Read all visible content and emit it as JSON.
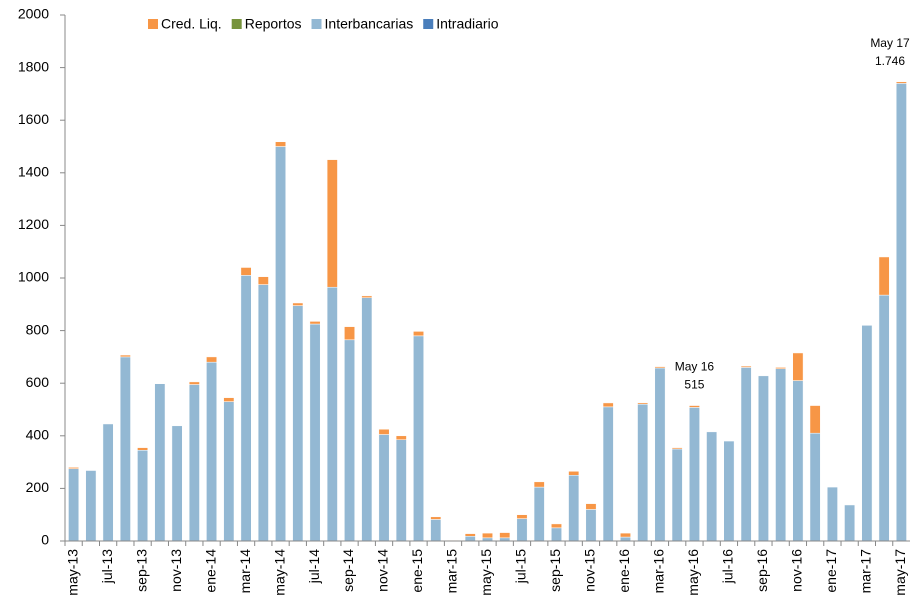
{
  "chart_data": {
    "type": "stacked_bar",
    "categories": [
      "may-13",
      null,
      "jul-13",
      null,
      "sep-13",
      null,
      "nov-13",
      null,
      "ene-14",
      null,
      "mar-14",
      null,
      "may-14",
      null,
      "jul-14",
      null,
      "sep-14",
      null,
      "nov-14",
      null,
      "ene-15",
      null,
      "mar-15",
      null,
      "may-15",
      null,
      "jul-15",
      null,
      "sep-15",
      null,
      "nov-15",
      null,
      "ene-16",
      null,
      "mar-16",
      null,
      "may-16",
      null,
      "jul-16",
      null,
      "sep-16",
      null,
      "nov-16",
      null,
      "ene-17",
      null,
      "mar-17",
      null,
      "may-17"
    ],
    "series": [
      {
        "name": "Intradiario",
        "color": "#4a7ebb",
        "values": [
          0,
          0,
          0,
          0,
          0,
          0,
          0,
          0,
          0,
          0,
          0,
          0,
          0,
          0,
          0,
          0,
          0,
          0,
          0,
          0,
          0,
          0,
          0,
          0,
          0,
          0,
          0,
          0,
          0,
          0,
          0,
          0,
          0,
          0,
          0,
          0,
          0,
          0,
          0,
          0,
          0,
          0,
          0,
          0,
          0,
          0,
          0,
          0,
          0
        ]
      },
      {
        "name": "Interbancarias",
        "color": "#93b8d3",
        "values": [
          275,
          268,
          445,
          700,
          345,
          598,
          438,
          595,
          680,
          530,
          1010,
          975,
          1500,
          895,
          825,
          965,
          765,
          925,
          405,
          385,
          780,
          82,
          0,
          18,
          12,
          12,
          85,
          205,
          50,
          250,
          120,
          510,
          15,
          520,
          658,
          350,
          508,
          415,
          380,
          660,
          628,
          655,
          610,
          410,
          205,
          137,
          820,
          935,
          1740
        ]
      },
      {
        "name": "Reportos",
        "color": "#77933c",
        "values": [
          0,
          0,
          0,
          0,
          0,
          0,
          0,
          0,
          0,
          0,
          0,
          0,
          0,
          0,
          0,
          0,
          0,
          0,
          0,
          0,
          0,
          0,
          0,
          0,
          0,
          0,
          0,
          0,
          0,
          0,
          0,
          0,
          0,
          0,
          0,
          0,
          0,
          0,
          0,
          0,
          0,
          0,
          0,
          0,
          0,
          0,
          0,
          0,
          0
        ]
      },
      {
        "name": "Cred. Liq.",
        "color": "#f79646",
        "values": [
          5,
          0,
          0,
          7,
          10,
          0,
          0,
          10,
          20,
          15,
          30,
          30,
          18,
          10,
          10,
          485,
          50,
          7,
          20,
          15,
          17,
          10,
          3,
          10,
          18,
          20,
          15,
          20,
          15,
          15,
          22,
          15,
          15,
          5,
          5,
          5,
          7,
          0,
          0,
          5,
          0,
          5,
          105,
          105,
          0,
          0,
          0,
          145,
          6
        ]
      }
    ],
    "legend_order": [
      "Cred. Liq.",
      "Reportos",
      "Interbancarias",
      "Intradiario"
    ],
    "annotations": [
      {
        "label": "May 16",
        "value": 515,
        "x": "may-16"
      },
      {
        "label": "May 17",
        "value": 1746,
        "value_label": "1.746",
        "x": "may-17"
      }
    ],
    "ylim": [
      0,
      2000
    ],
    "yticks": [
      0,
      200,
      400,
      600,
      800,
      1000,
      1200,
      1400,
      1600,
      1800,
      2000
    ],
    "grid": false
  }
}
